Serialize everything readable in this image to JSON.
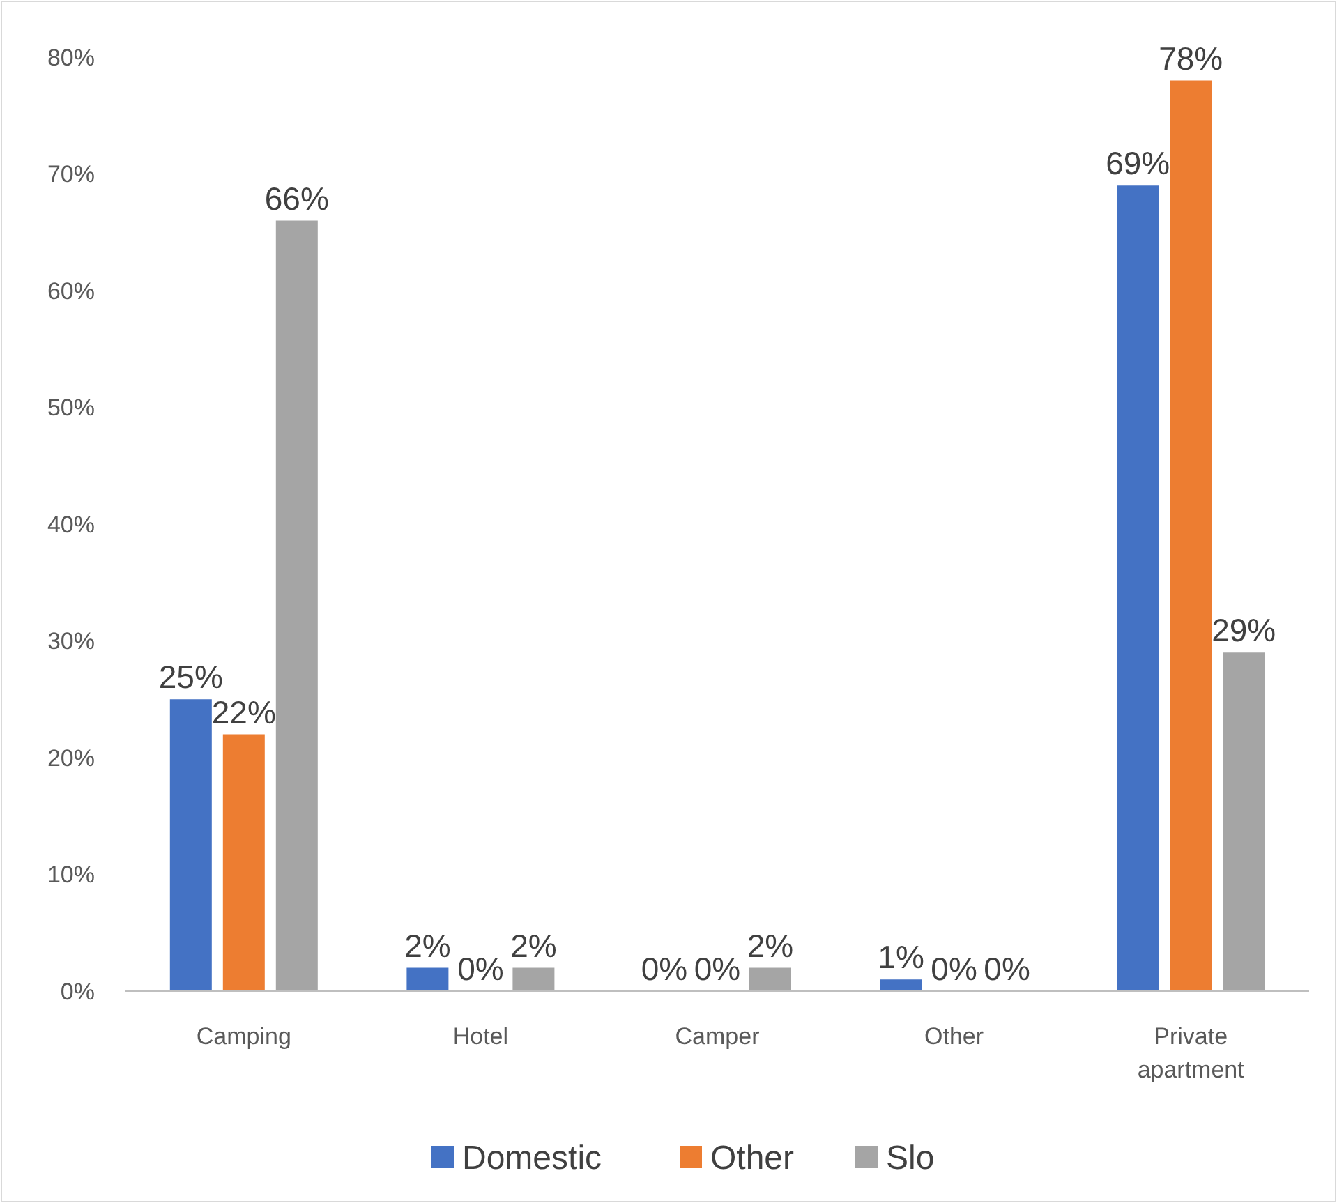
{
  "chart_data": {
    "type": "bar",
    "categories": [
      "Camping",
      "Hotel",
      "Camper",
      "Other",
      "Private apartment"
    ],
    "series": [
      {
        "name": "Domestic",
        "color": "#4472c4",
        "values": [
          25,
          2,
          0,
          1,
          69
        ],
        "value_labels": [
          "25%",
          "2%",
          "0%",
          "1%",
          "69%"
        ]
      },
      {
        "name": "Other",
        "color": "#ed7d31",
        "values": [
          22,
          0,
          0,
          0,
          78
        ],
        "value_labels": [
          "22%",
          "0%",
          "0%",
          "0%",
          "78%"
        ]
      },
      {
        "name": "Slo",
        "color": "#a5a5a5",
        "values": [
          66,
          2,
          2,
          0,
          29
        ],
        "value_labels": [
          "66%",
          "2%",
          "2%",
          "0%",
          "29%"
        ]
      }
    ],
    "ylim": [
      0,
      80
    ],
    "yticks": [
      {
        "value": 0,
        "label": "0%"
      },
      {
        "value": 10,
        "label": "10%"
      },
      {
        "value": 20,
        "label": "20%"
      },
      {
        "value": 30,
        "label": "30%"
      },
      {
        "value": 40,
        "label": "40%"
      },
      {
        "value": 50,
        "label": "50%"
      },
      {
        "value": 60,
        "label": "60%"
      },
      {
        "value": 70,
        "label": "70%"
      },
      {
        "value": 80,
        "label": "80%"
      }
    ],
    "grid": false,
    "legend": "bottom"
  }
}
